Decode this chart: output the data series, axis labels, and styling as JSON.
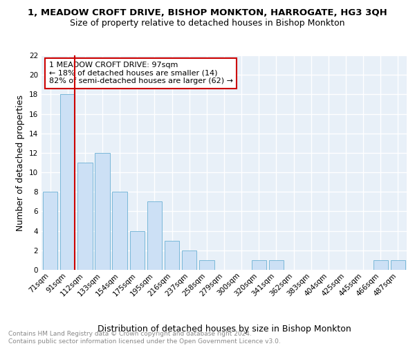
{
  "title": "1, MEADOW CROFT DRIVE, BISHOP MONKTON, HARROGATE, HG3 3QH",
  "subtitle": "Size of property relative to detached houses in Bishop Monkton",
  "xlabel": "Distribution of detached houses by size in Bishop Monkton",
  "ylabel": "Number of detached properties",
  "bar_color": "#cce0f5",
  "bar_edge_color": "#7ab8d9",
  "bg_color": "#e8f0f8",
  "grid_color": "#ffffff",
  "categories": [
    "71sqm",
    "91sqm",
    "112sqm",
    "133sqm",
    "154sqm",
    "175sqm",
    "195sqm",
    "216sqm",
    "237sqm",
    "258sqm",
    "279sqm",
    "300sqm",
    "320sqm",
    "341sqm",
    "362sqm",
    "383sqm",
    "404sqm",
    "425sqm",
    "445sqm",
    "466sqm",
    "487sqm"
  ],
  "values": [
    8,
    18,
    11,
    12,
    8,
    4,
    7,
    3,
    2,
    1,
    0,
    0,
    1,
    1,
    0,
    0,
    0,
    0,
    0,
    1,
    1
  ],
  "ylim": [
    0,
    22
  ],
  "yticks": [
    0,
    2,
    4,
    6,
    8,
    10,
    12,
    14,
    16,
    18,
    20,
    22
  ],
  "annotation_line1": "1 MEADOW CROFT DRIVE: 97sqm",
  "annotation_line2": "← 18% of detached houses are smaller (14)",
  "annotation_line3": "82% of semi-detached houses are larger (62) →",
  "vline_color": "#cc0000",
  "annotation_box_color": "#ffffff",
  "annotation_box_edge": "#cc0000",
  "footer_line1": "Contains HM Land Registry data © Crown copyright and database right 2024.",
  "footer_line2": "Contains public sector information licensed under the Open Government Licence v3.0.",
  "title_fontsize": 9.5,
  "subtitle_fontsize": 9,
  "xlabel_fontsize": 9,
  "ylabel_fontsize": 9,
  "tick_fontsize": 7.5,
  "footer_fontsize": 6.5
}
